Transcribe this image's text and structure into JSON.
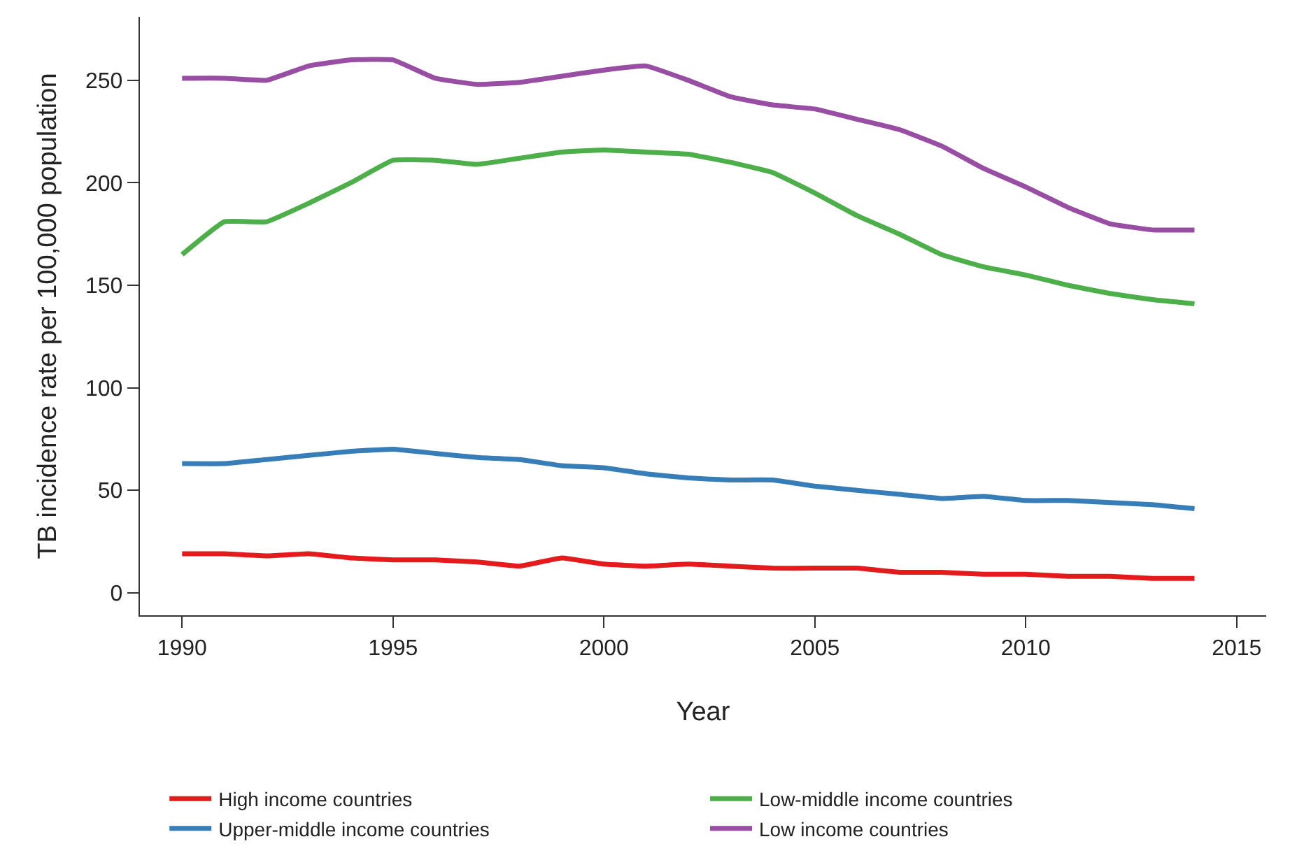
{
  "chart_data": {
    "type": "line",
    "xlabel": "Year",
    "ylabel": "TB incidence rate per 100,000 population",
    "x": [
      1990,
      1991,
      1992,
      1993,
      1994,
      1995,
      1996,
      1997,
      1998,
      1999,
      2000,
      2001,
      2002,
      2003,
      2004,
      2005,
      2006,
      2007,
      2008,
      2009,
      2010,
      2011,
      2012,
      2013,
      2014
    ],
    "series": [
      {
        "name": "High income countries",
        "color": "#e41a1c",
        "values": [
          19,
          19,
          18,
          19,
          17,
          16,
          16,
          15,
          13,
          17,
          14,
          13,
          14,
          13,
          12,
          12,
          12,
          10,
          10,
          9,
          9,
          8,
          8,
          7,
          7
        ]
      },
      {
        "name": "Low-middle income countries",
        "color": "#4daf4a",
        "values": [
          165,
          181,
          181,
          190,
          200,
          211,
          211,
          209,
          212,
          215,
          216,
          215,
          214,
          210,
          205,
          195,
          184,
          175,
          165,
          159,
          155,
          150,
          146,
          143,
          141
        ]
      },
      {
        "name": "Upper-middle income countries",
        "color": "#377eb8",
        "values": [
          63,
          63,
          65,
          67,
          69,
          70,
          68,
          66,
          65,
          62,
          61,
          58,
          56,
          55,
          55,
          52,
          50,
          48,
          46,
          47,
          45,
          45,
          44,
          43,
          41
        ]
      },
      {
        "name": "Low income countries",
        "color": "#984ea3",
        "values": [
          251,
          251,
          250,
          257,
          260,
          260,
          251,
          248,
          249,
          252,
          255,
          257,
          250,
          242,
          238,
          236,
          231,
          226,
          218,
          207,
          198,
          188,
          180,
          177,
          177
        ]
      }
    ],
    "xlim": [
      1989,
      2015.7
    ],
    "xticks": [
      1990,
      1995,
      2000,
      2005,
      2010,
      2015
    ],
    "ylim": [
      -11,
      281
    ],
    "yticks": [
      0,
      50,
      100,
      150,
      200,
      250
    ],
    "legend": "bottom",
    "marker": "none",
    "line_style": "solid"
  }
}
